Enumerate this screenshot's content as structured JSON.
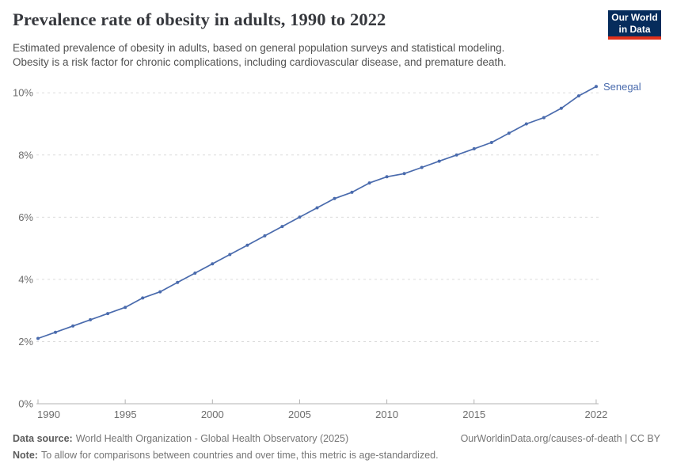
{
  "header": {
    "title": "Prevalence rate of obesity in adults, 1990 to 2022",
    "subtitle": "Estimated prevalence of obesity in adults, based on general population surveys and statistical modeling.\nObesity is a risk factor for chronic complications, including cardiovascular disease, and premature death."
  },
  "logo": {
    "line1": "Our World",
    "line2": "in Data",
    "bg_color": "#062c5c",
    "accent_color": "#e0311b"
  },
  "chart_data": {
    "type": "line",
    "title": "Prevalence rate of obesity in adults, 1990 to 2022",
    "xlabel": "",
    "ylabel": "",
    "x": [
      1990,
      1991,
      1992,
      1993,
      1994,
      1995,
      1996,
      1997,
      1998,
      1999,
      2000,
      2001,
      2002,
      2003,
      2004,
      2005,
      2006,
      2007,
      2008,
      2009,
      2010,
      2011,
      2012,
      2013,
      2014,
      2015,
      2016,
      2017,
      2018,
      2019,
      2020,
      2021,
      2022
    ],
    "series": [
      {
        "name": "Senegal",
        "color": "#4a6bad",
        "values": [
          2.1,
          2.3,
          2.5,
          2.7,
          2.9,
          3.1,
          3.4,
          3.6,
          3.9,
          4.2,
          4.5,
          4.8,
          5.1,
          5.4,
          5.7,
          6.0,
          6.3,
          6.6,
          6.8,
          7.1,
          7.3,
          7.4,
          7.6,
          7.8,
          8.0,
          8.2,
          8.4,
          8.7,
          9.0,
          9.2,
          9.5,
          9.9,
          10.2
        ]
      }
    ],
    "x_ticks": [
      1990,
      1995,
      2000,
      2005,
      2010,
      2015,
      2022
    ],
    "y_ticks": [
      "0%",
      "2%",
      "4%",
      "6%",
      "8%",
      "10%"
    ],
    "y_tick_values": [
      0,
      2,
      4,
      6,
      8,
      10
    ],
    "ylim": [
      0,
      10.6
    ],
    "xlim": [
      1990,
      2022
    ],
    "grid": "horizontal-dashed",
    "legend_position": "end-of-line",
    "end_label": "Senegal",
    "unit": "%",
    "grid_color": "#dcdcdc",
    "axis_color": "#b3b3b3",
    "tick_text_color": "#6d6d6d"
  },
  "footer": {
    "datasource_label": "Data source:",
    "datasource_text": "World Health Organization - Global Health Observatory (2025)",
    "rights_text": "OurWorldinData.org/causes-of-death | CC BY",
    "note_label": "Note:",
    "note_text": "To allow for comparisons between countries and over time, this metric is age-standardized."
  }
}
